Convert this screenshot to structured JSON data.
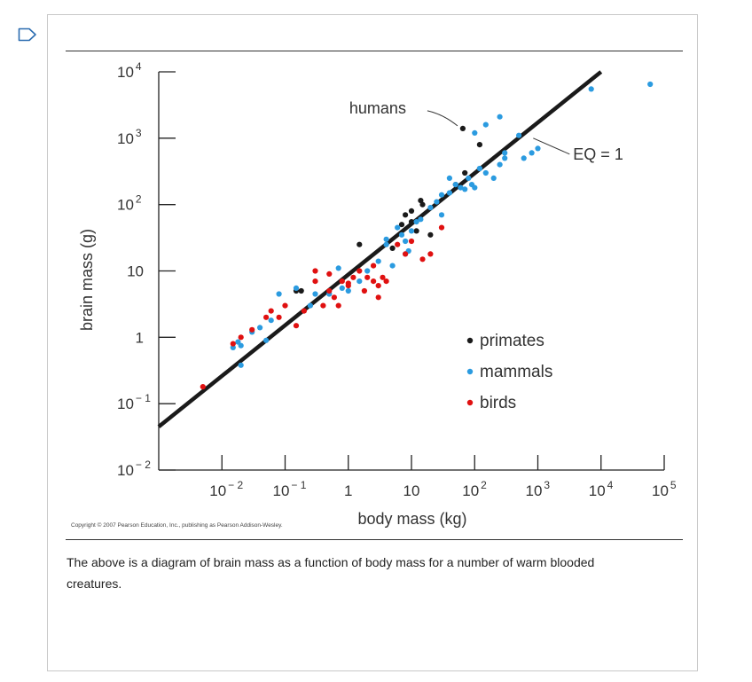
{
  "caption": "The above is a diagram of brain mass as a function of body mass for a number of warm blooded creatures.",
  "copyright": "Copyright © 2007 Pearson Education, Inc., publishing as Pearson Addison-Wesley.",
  "colors": {
    "primates": "#1a1a1a",
    "mammals": "#2b9be0",
    "birds": "#e01010",
    "line": "#1a1a1a"
  },
  "chart_data": {
    "type": "scatter",
    "xlabel": "body mass (kg)",
    "ylabel": "brain mass (g)",
    "xscale": "log",
    "yscale": "log",
    "xlim": [
      0.001,
      100000
    ],
    "ylim": [
      0.01,
      10000
    ],
    "x_ticks": [
      {
        "value": 0.01,
        "base": "10",
        "exp": "− 2"
      },
      {
        "value": 0.1,
        "base": "10",
        "exp": "− 1"
      },
      {
        "value": 1,
        "base": "1",
        "exp": ""
      },
      {
        "value": 10,
        "base": "10",
        "exp": ""
      },
      {
        "value": 100,
        "base": "10",
        "exp": "2"
      },
      {
        "value": 1000,
        "base": "10",
        "exp": "3"
      },
      {
        "value": 10000,
        "base": "10",
        "exp": "4"
      },
      {
        "value": 100000,
        "base": "10",
        "exp": "5"
      }
    ],
    "y_ticks": [
      {
        "value": 10000,
        "base": "10",
        "exp": "4"
      },
      {
        "value": 1000,
        "base": "10",
        "exp": "3"
      },
      {
        "value": 100,
        "base": "10",
        "exp": "2"
      },
      {
        "value": 10,
        "base": "10",
        "exp": ""
      },
      {
        "value": 1,
        "base": "1",
        "exp": ""
      },
      {
        "value": 0.1,
        "base": "10",
        "exp": "− 1"
      },
      {
        "value": 0.01,
        "base": "10",
        "exp": "− 2"
      }
    ],
    "legend": {
      "placement": "bottom-right",
      "entries": [
        {
          "key": "primates",
          "label": "primates"
        },
        {
          "key": "mammals",
          "label": "mammals"
        },
        {
          "key": "birds",
          "label": "birds"
        }
      ]
    },
    "reference_line": {
      "label": "EQ = 1",
      "points": [
        [
          0.001,
          0.045
        ],
        [
          10000,
          10000
        ]
      ]
    },
    "annotations": [
      {
        "text": "humans",
        "x": 65,
        "y": 1400
      },
      {
        "text": "EQ = 1",
        "x": 5000,
        "y": 1000
      }
    ],
    "series": [
      {
        "name": "primates",
        "color_key": "primates",
        "points": [
          [
            0.15,
            5
          ],
          [
            0.18,
            5
          ],
          [
            1.5,
            25
          ],
          [
            5,
            22
          ],
          [
            8,
            70
          ],
          [
            10,
            55
          ],
          [
            10,
            80
          ],
          [
            14,
            115
          ],
          [
            15,
            100
          ],
          [
            20,
            35
          ],
          [
            7,
            50
          ],
          [
            12,
            40
          ],
          [
            50,
            200
          ],
          [
            65,
            1400
          ],
          [
            70,
            300
          ],
          [
            120,
            800
          ]
        ]
      },
      {
        "name": "mammals",
        "color_key": "mammals",
        "points": [
          [
            0.015,
            0.7
          ],
          [
            0.018,
            0.85
          ],
          [
            0.02,
            0.75
          ],
          [
            0.02,
            0.38
          ],
          [
            0.03,
            1.2
          ],
          [
            0.04,
            1.4
          ],
          [
            0.05,
            0.9
          ],
          [
            0.06,
            1.8
          ],
          [
            0.08,
            4.5
          ],
          [
            0.15,
            5.5
          ],
          [
            0.25,
            3
          ],
          [
            0.3,
            4.5
          ],
          [
            0.5,
            4.5
          ],
          [
            0.7,
            11
          ],
          [
            0.8,
            5.5
          ],
          [
            1,
            5
          ],
          [
            1.5,
            7
          ],
          [
            2,
            10
          ],
          [
            3,
            14
          ],
          [
            4,
            25
          ],
          [
            4,
            30
          ],
          [
            5,
            12
          ],
          [
            6,
            45
          ],
          [
            7,
            35
          ],
          [
            8,
            28
          ],
          [
            8,
            18
          ],
          [
            9,
            20
          ],
          [
            10,
            40
          ],
          [
            12,
            55
          ],
          [
            14,
            60
          ],
          [
            20,
            90
          ],
          [
            25,
            110
          ],
          [
            30,
            140
          ],
          [
            30,
            70
          ],
          [
            40,
            250
          ],
          [
            40,
            150
          ],
          [
            50,
            200
          ],
          [
            60,
            180
          ],
          [
            70,
            170
          ],
          [
            80,
            250
          ],
          [
            90,
            200
          ],
          [
            100,
            180
          ],
          [
            120,
            350
          ],
          [
            150,
            300
          ],
          [
            200,
            250
          ],
          [
            250,
            400
          ],
          [
            300,
            500
          ],
          [
            300,
            600
          ],
          [
            500,
            1100
          ],
          [
            600,
            500
          ],
          [
            800,
            600
          ],
          [
            1000,
            700
          ],
          [
            7000,
            5500
          ],
          [
            60000,
            6500
          ],
          [
            150,
            1600
          ],
          [
            100,
            1200
          ],
          [
            250,
            2100
          ]
        ]
      },
      {
        "name": "birds",
        "color_key": "birds",
        "points": [
          [
            0.005,
            0.18
          ],
          [
            0.015,
            0.8
          ],
          [
            0.02,
            1
          ],
          [
            0.03,
            1.3
          ],
          [
            0.05,
            2
          ],
          [
            0.06,
            2.5
          ],
          [
            0.08,
            2
          ],
          [
            0.1,
            3
          ],
          [
            0.15,
            1.5
          ],
          [
            0.2,
            2.5
          ],
          [
            0.3,
            7
          ],
          [
            0.4,
            3
          ],
          [
            0.5,
            5
          ],
          [
            0.6,
            4
          ],
          [
            0.7,
            3
          ],
          [
            0.8,
            7
          ],
          [
            1,
            6
          ],
          [
            1.2,
            8
          ],
          [
            1.5,
            10
          ],
          [
            1.8,
            5
          ],
          [
            2,
            8
          ],
          [
            2.5,
            7
          ],
          [
            3,
            6
          ],
          [
            3,
            4
          ],
          [
            3.5,
            8
          ],
          [
            4,
            7
          ],
          [
            6,
            25
          ],
          [
            8,
            18
          ],
          [
            10,
            28
          ],
          [
            15,
            15
          ],
          [
            30,
            45
          ],
          [
            0.3,
            10
          ],
          [
            0.5,
            9
          ],
          [
            1,
            6.5
          ],
          [
            2.5,
            12
          ],
          [
            20,
            18
          ]
        ]
      }
    ]
  }
}
